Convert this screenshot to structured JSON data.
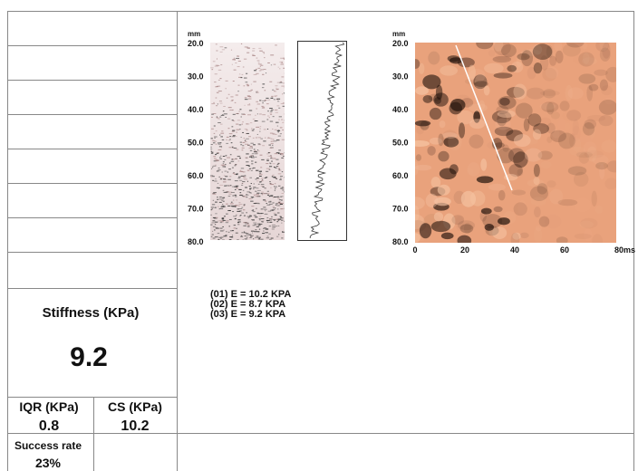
{
  "stiffness": {
    "label": "Stiffness (KPa)",
    "value": "9.2"
  },
  "iqr": {
    "label": "IQR (KPa)",
    "value": "0.8"
  },
  "cs": {
    "label": "CS (KPa)",
    "value": "10.2"
  },
  "success_rate": {
    "label": "Success rate",
    "value": "23%"
  },
  "mmode_plot": {
    "unit": "mm",
    "yticks": [
      "20.0",
      "30.0",
      "40.0",
      "50.0",
      "60.0",
      "70.0",
      "80.0"
    ]
  },
  "elastogram": {
    "unit": "mm",
    "yticks": [
      "20.0",
      "30.0",
      "40.0",
      "50.0",
      "60.0",
      "70.0",
      "80.0"
    ],
    "xticks": [
      "0",
      "20",
      "40",
      "60",
      "80ms"
    ]
  },
  "measurements": [
    "(01)  E  =  10.2  KPA",
    "(02)  E  =  8.7  KPA",
    "(03)  E  =  9.2  KPA"
  ]
}
